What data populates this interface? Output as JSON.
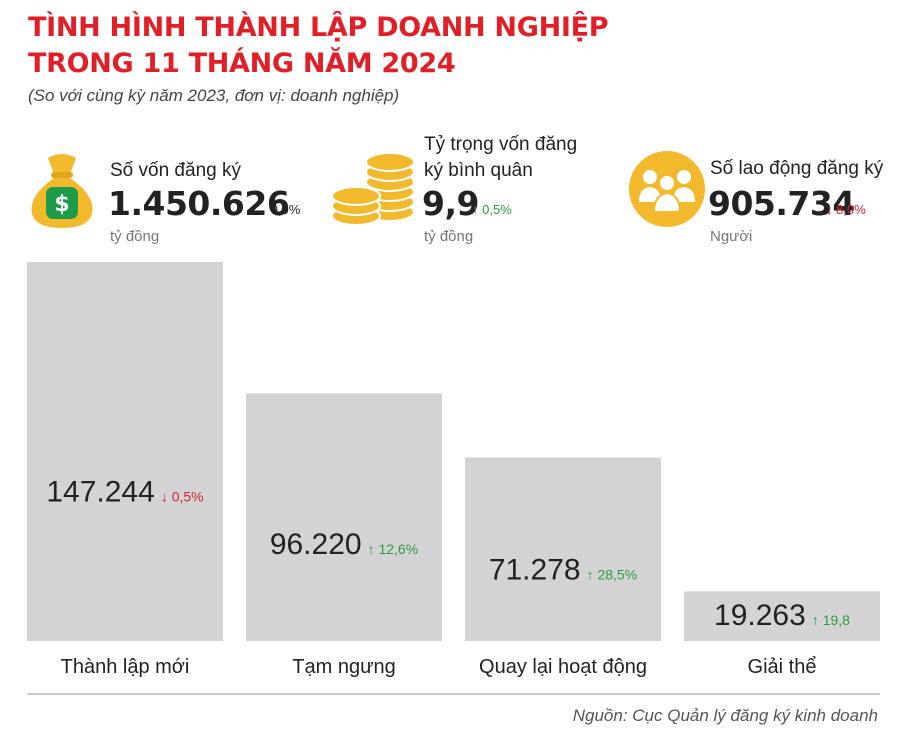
{
  "header": {
    "title_line1": "TÌNH HÌNH THÀNH LẬP DOANH NGHIỆP",
    "title_line2": "TRONG 11 THÁNG NĂM 2024",
    "subtitle": "(So với cùng kỳ năm 2023, đơn vị: doanh nghiệp)"
  },
  "stats": {
    "capital": {
      "label": "Số vốn đăng ký",
      "value": "1.450.626",
      "arrow": "→",
      "change": "0,0%",
      "unit": "tỷ đồng",
      "icon": "money-bag-icon"
    },
    "avg_capital": {
      "label_line1": "Tỷ trọng vốn đăng",
      "label_line2": "ký bình quân",
      "value": "9,9",
      "arrow": "↑",
      "change": "0,5%",
      "unit": "tỷ đồng",
      "icon": "coins-icon"
    },
    "labor": {
      "label": "Số lao động đăng ký",
      "value": "905.734",
      "arrow": "↓",
      "change": "8,0%",
      "unit": "Người",
      "icon": "people-icon"
    }
  },
  "chart_data": {
    "type": "bar",
    "categories": [
      "Thành lập mới",
      "Tạm ngưng",
      "Quay lại hoạt động",
      "Giải thể"
    ],
    "values": [
      147244,
      96220,
      71278,
      19263
    ],
    "value_labels": [
      "147.244",
      "96.220",
      "71.278",
      "19.263"
    ],
    "changes": [
      {
        "direction": "down",
        "arrow": "↓",
        "text": "0,5%"
      },
      {
        "direction": "up",
        "arrow": "↑",
        "text": "12,6%"
      },
      {
        "direction": "up",
        "arrow": "↑",
        "text": "28,5%"
      },
      {
        "direction": "up",
        "arrow": "↑",
        "text": "19,8"
      }
    ],
    "ylim": [
      0,
      147244
    ],
    "bar_color": "#d3d3d3",
    "up_color": "#2a9d3f",
    "down_color": "#d8232a"
  },
  "source": "Nguồn: Cục Quản lý đăng ký kinh doanh",
  "colors": {
    "title": "#e01f26",
    "icon_fill": "#f2b92c",
    "icon_dark": "#e3a51c"
  }
}
